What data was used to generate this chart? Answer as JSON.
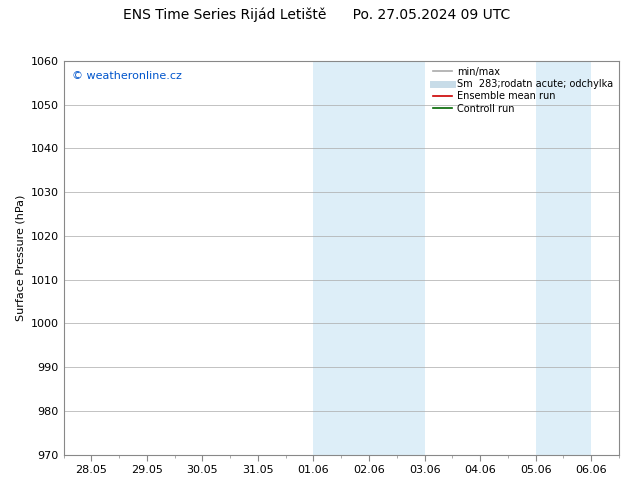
{
  "title_left": "ENS Time Series Rijád Letiště",
  "title_right": "Po. 27.05.2024 09 UTC",
  "ylabel": "Surface Pressure (hPa)",
  "ylim": [
    970,
    1060
  ],
  "yticks": [
    970,
    980,
    990,
    1000,
    1010,
    1020,
    1030,
    1040,
    1050,
    1060
  ],
  "xtick_labels": [
    "28.05",
    "29.05",
    "30.05",
    "31.05",
    "01.06",
    "02.06",
    "03.06",
    "04.06",
    "05.06",
    "06.06"
  ],
  "xtick_positions": [
    0,
    1,
    2,
    3,
    4,
    5,
    6,
    7,
    8,
    9
  ],
  "shaded_regions": [
    {
      "x_start": 4.0,
      "x_end": 5.0
    },
    {
      "x_start": 5.0,
      "x_end": 6.0
    },
    {
      "x_start": 8.0,
      "x_end": 8.5
    },
    {
      "x_start": 8.5,
      "x_end": 9.0
    }
  ],
  "shaded_color": "#ddeef8",
  "watermark_text": "© weatheronline.cz",
  "watermark_color": "#0055cc",
  "legend_entries": [
    {
      "label": "min/max",
      "color": "#aaaaaa",
      "linewidth": 1.2
    },
    {
      "label": "Sm  283;rodatn acute; odchylka",
      "color": "#c8dce8",
      "linewidth": 5
    },
    {
      "label": "Ensemble mean run",
      "color": "#cc0000",
      "linewidth": 1.2
    },
    {
      "label": "Controll run",
      "color": "#006600",
      "linewidth": 1.2
    }
  ],
  "bg_color": "#ffffff",
  "grid_color": "#aaaaaa",
  "title_fontsize": 10,
  "axis_fontsize": 8,
  "tick_fontsize": 8,
  "legend_fontsize": 7
}
